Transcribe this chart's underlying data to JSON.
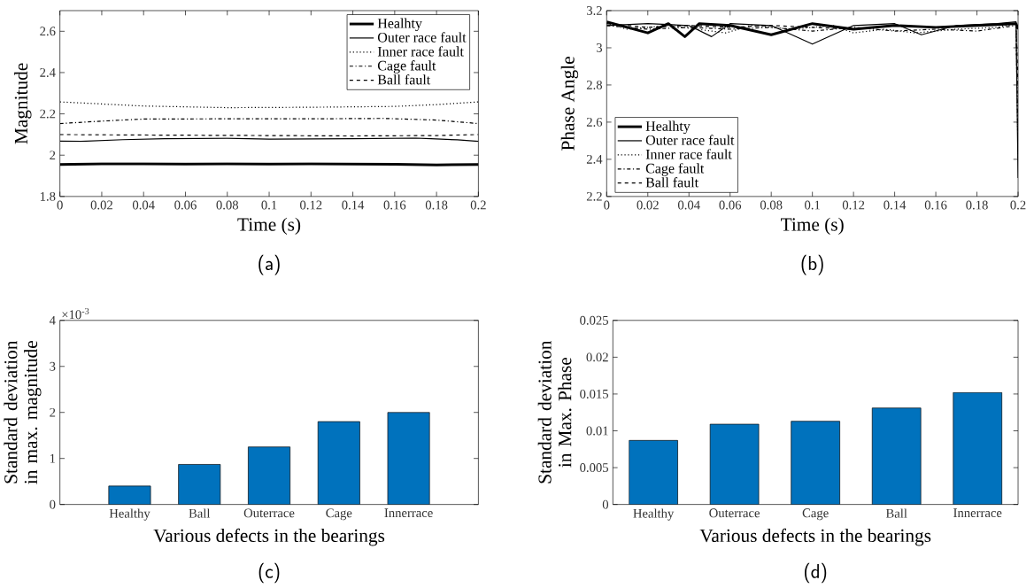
{
  "chart_data": [
    {
      "type": "line",
      "xlabel": "Time (s)",
      "ylabel": "Magnitude",
      "xlim": [
        0,
        0.2
      ],
      "ylim": [
        1.8,
        2.7
      ],
      "xticks": [
        0,
        0.02,
        0.04,
        0.06,
        0.08,
        0.1,
        0.12,
        0.14,
        0.16,
        0.18,
        0.2
      ],
      "yticks": [
        1.8,
        2,
        2.2,
        2.4,
        2.6
      ],
      "legend": "top right",
      "marker": "none",
      "annotations": [
        "(a)"
      ],
      "series": [
        {
          "name": "Healhty",
          "color": "#000000",
          "line_style": "solid",
          "x": [
            0,
            0.02,
            0.04,
            0.06,
            0.08,
            0.1,
            0.12,
            0.14,
            0.16,
            0.18,
            0.2
          ],
          "values": [
            1.955,
            1.958,
            1.958,
            1.957,
            1.958,
            1.957,
            1.958,
            1.957,
            1.956,
            1.953,
            1.955
          ]
        },
        {
          "name": "Outer race fault",
          "color": "#000000",
          "line_style": "solid",
          "x": [
            0,
            0.01,
            0.03,
            0.05,
            0.08,
            0.1,
            0.12,
            0.14,
            0.17,
            0.19,
            0.2
          ],
          "values": [
            2.068,
            2.067,
            2.075,
            2.08,
            2.082,
            2.078,
            2.079,
            2.08,
            2.083,
            2.074,
            2.067
          ]
        },
        {
          "name": "Inner race fault",
          "color": "#000000",
          "line_style": "dotted",
          "x": [
            0,
            0.02,
            0.04,
            0.08,
            0.12,
            0.16,
            0.18,
            0.2
          ],
          "values": [
            2.258,
            2.248,
            2.238,
            2.23,
            2.232,
            2.236,
            2.245,
            2.258
          ]
        },
        {
          "name": "Cage fault",
          "color": "#000000",
          "line_style": "dashdot",
          "x": [
            0,
            0.02,
            0.04,
            0.08,
            0.12,
            0.155,
            0.18,
            0.2
          ],
          "values": [
            2.153,
            2.165,
            2.175,
            2.176,
            2.176,
            2.178,
            2.17,
            2.153
          ]
        },
        {
          "name": "Ball fault",
          "color": "#000000",
          "line_style": "dashed",
          "x": [
            0,
            0.05,
            0.1,
            0.14,
            0.18,
            0.2
          ],
          "values": [
            2.1,
            2.097,
            2.095,
            2.093,
            2.095,
            2.1
          ]
        }
      ]
    },
    {
      "type": "line",
      "xlabel": "Time (s)",
      "ylabel": "Phase Angle",
      "xlim": [
        0,
        0.2
      ],
      "ylim": [
        2.2,
        3.2
      ],
      "xticks": [
        0,
        0.02,
        0.04,
        0.06,
        0.08,
        0.1,
        0.12,
        0.14,
        0.16,
        0.18,
        0.2
      ],
      "yticks": [
        2.2,
        2.4,
        2.6,
        2.8,
        3,
        3.2
      ],
      "legend": "bottom left",
      "marker": "none",
      "annotations": [
        "(b)"
      ],
      "series": [
        {
          "name": "Healhty",
          "color": "#000000",
          "line_style": "solid",
          "x": [
            0,
            0.01,
            0.02,
            0.03,
            0.038,
            0.045,
            0.06,
            0.08,
            0.1,
            0.12,
            0.14,
            0.16,
            0.18,
            0.199,
            0.2
          ],
          "values": [
            3.14,
            3.11,
            3.08,
            3.13,
            3.06,
            3.13,
            3.12,
            3.07,
            3.13,
            3.1,
            3.12,
            3.11,
            3.12,
            3.13,
            3.1
          ]
        },
        {
          "name": "Outer race fault",
          "color": "#000000",
          "line_style": "solid",
          "x": [
            0,
            0.02,
            0.04,
            0.051,
            0.06,
            0.08,
            0.1,
            0.12,
            0.14,
            0.153,
            0.17,
            0.19,
            0.199,
            0.2
          ],
          "values": [
            3.12,
            3.13,
            3.12,
            3.06,
            3.13,
            3.12,
            3.02,
            3.12,
            3.13,
            3.07,
            3.12,
            3.13,
            3.14,
            2.3
          ]
        },
        {
          "name": "Inner race fault",
          "color": "#000000",
          "line_style": "dotted",
          "x": [
            0,
            0.01,
            0.03,
            0.058,
            0.07,
            0.09,
            0.11,
            0.12,
            0.135,
            0.15,
            0.17,
            0.19,
            0.199,
            0.2
          ],
          "values": [
            3.13,
            3.1,
            3.12,
            3.08,
            3.12,
            3.1,
            3.12,
            3.08,
            3.1,
            3.08,
            3.1,
            3.11,
            3.13,
            2.4
          ]
        },
        {
          "name": "Cage fault",
          "color": "#000000",
          "line_style": "dashdot",
          "x": [
            0,
            0.02,
            0.04,
            0.06,
            0.08,
            0.1,
            0.12,
            0.14,
            0.16,
            0.18,
            0.199,
            0.2
          ],
          "values": [
            3.12,
            3.1,
            3.11,
            3.1,
            3.11,
            3.09,
            3.11,
            3.09,
            3.1,
            3.09,
            3.12,
            2.5
          ]
        },
        {
          "name": "Ball fault",
          "color": "#000000",
          "line_style": "dashed",
          "x": [
            0,
            0.02,
            0.04,
            0.06,
            0.08,
            0.1,
            0.12,
            0.14,
            0.16,
            0.18,
            0.199,
            0.2
          ],
          "values": [
            3.13,
            3.11,
            3.12,
            3.11,
            3.12,
            3.11,
            3.1,
            3.12,
            3.11,
            3.12,
            3.13,
            2.8
          ]
        }
      ]
    },
    {
      "type": "bar",
      "xlabel": "Various defects in the bearings",
      "ylabel": "Standard deviation in max. magnitude",
      "categories": [
        "Healthy",
        "Ball",
        "Outerrace",
        "Cage",
        "Innerrace"
      ],
      "values": [
        0.4,
        0.87,
        1.25,
        1.8,
        2.0
      ],
      "color": "#0072bd",
      "ylim": [
        0,
        4
      ],
      "yticks": [
        0,
        1,
        2,
        3,
        4
      ],
      "annotations": [
        "(c)",
        "×10$^{-3}$"
      ]
    },
    {
      "type": "bar",
      "xlabel": "Various defects in the bearings",
      "ylabel": "Standard deviation in Max. Phase",
      "categories": [
        "Healthy",
        "Outerrace",
        "Cage",
        "Ball",
        "Innerrace"
      ],
      "values": [
        0.0087,
        0.0109,
        0.0113,
        0.0131,
        0.0152
      ],
      "color": "#0072bd",
      "ylim": [
        0,
        0.025
      ],
      "yticks": [
        0,
        0.005,
        0.01,
        0.015,
        0.02,
        0.025
      ],
      "annotations": [
        "(d)"
      ]
    }
  ]
}
